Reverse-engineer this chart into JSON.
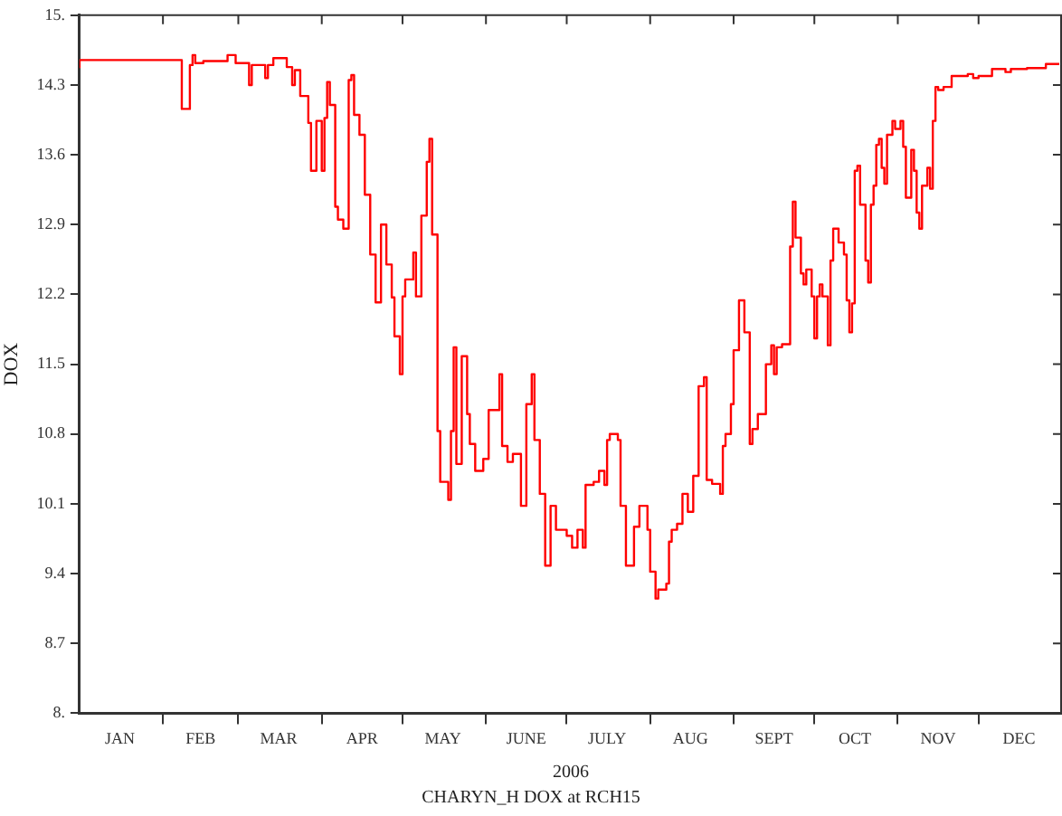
{
  "chart_data": {
    "type": "step",
    "title": "CHARYN_H DOX at RCH15",
    "xlabel": "2006",
    "ylabel": "DOX",
    "x": [
      "2006-01-01",
      "2006-01-31",
      "2006-02-08",
      "2006-02-09",
      "2006-02-11",
      "2006-02-12",
      "2006-02-13",
      "2006-02-16",
      "2006-02-25",
      "2006-02-28",
      "2006-03-05",
      "2006-03-06",
      "2006-03-07",
      "2006-03-11",
      "2006-03-12",
      "2006-03-14",
      "2006-03-19",
      "2006-03-21",
      "2006-03-22",
      "2006-03-24",
      "2006-03-27",
      "2006-03-28",
      "2006-03-30",
      "2006-04-01",
      "2006-04-02",
      "2006-04-03",
      "2006-04-04",
      "2006-04-06",
      "2006-04-07",
      "2006-04-09",
      "2006-04-11",
      "2006-04-12",
      "2006-04-13",
      "2006-04-15",
      "2006-04-17",
      "2006-04-19",
      "2006-04-21",
      "2006-04-23",
      "2006-04-25",
      "2006-04-27",
      "2006-04-28",
      "2006-04-30",
      "2006-05-01",
      "2006-05-02",
      "2006-05-05",
      "2006-05-06",
      "2006-05-08",
      "2006-05-10",
      "2006-05-11",
      "2006-05-12",
      "2006-05-14",
      "2006-05-15",
      "2006-05-18",
      "2006-05-19",
      "2006-05-20",
      "2006-05-21",
      "2006-05-23",
      "2006-05-25",
      "2006-05-26",
      "2006-05-28",
      "2006-05-31",
      "2006-06-02",
      "2006-06-06",
      "2006-06-07",
      "2006-06-09",
      "2006-06-11",
      "2006-06-14",
      "2006-06-16",
      "2006-06-18",
      "2006-06-19",
      "2006-06-21",
      "2006-06-23",
      "2006-06-25",
      "2006-06-27",
      "2006-07-01",
      "2006-07-03",
      "2006-07-05",
      "2006-07-07",
      "2006-07-08",
      "2006-07-11",
      "2006-07-13",
      "2006-07-15",
      "2006-07-16",
      "2006-07-17",
      "2006-07-20",
      "2006-07-21",
      "2006-07-23",
      "2006-07-26",
      "2006-07-28",
      "2006-07-31",
      "2006-08-01",
      "2006-08-03",
      "2006-08-04",
      "2006-08-07",
      "2006-08-08",
      "2006-08-09",
      "2006-08-11",
      "2006-08-13",
      "2006-08-15",
      "2006-08-17",
      "2006-08-19",
      "2006-08-21",
      "2006-08-22",
      "2006-08-24",
      "2006-08-27",
      "2006-08-28",
      "2006-08-29",
      "2006-08-31",
      "2006-09-01",
      "2006-09-03",
      "2006-09-05",
      "2006-09-07",
      "2006-09-08",
      "2006-09-10",
      "2006-09-13",
      "2006-09-15",
      "2006-09-16",
      "2006-09-17",
      "2006-09-19",
      "2006-09-22",
      "2006-09-23",
      "2006-09-24",
      "2006-09-26",
      "2006-09-27",
      "2006-09-28",
      "2006-09-30",
      "2006-10-01",
      "2006-10-02",
      "2006-10-03",
      "2006-10-04",
      "2006-10-06",
      "2006-10-07",
      "2006-10-08",
      "2006-10-10",
      "2006-10-12",
      "2006-10-13",
      "2006-10-14",
      "2006-10-15",
      "2006-10-16",
      "2006-10-17",
      "2006-10-18",
      "2006-10-20",
      "2006-10-21",
      "2006-10-22",
      "2006-10-23",
      "2006-10-24",
      "2006-10-25",
      "2006-10-26",
      "2006-10-27",
      "2006-10-28",
      "2006-10-30",
      "2006-10-31",
      "2006-11-02",
      "2006-11-03",
      "2006-11-04",
      "2006-11-06",
      "2006-11-07",
      "2006-11-08",
      "2006-11-09",
      "2006-11-10",
      "2006-11-12",
      "2006-11-13",
      "2006-11-14",
      "2006-11-15",
      "2006-11-16",
      "2006-11-18",
      "2006-11-21",
      "2006-11-27",
      "2006-11-29",
      "2006-12-01",
      "2006-12-06",
      "2006-12-11",
      "2006-12-13",
      "2006-12-19",
      "2006-12-26",
      "2006-12-31"
    ],
    "series": [
      {
        "color": "#ff0000",
        "values": [
          14.47,
          14.55,
          14.55,
          14.06,
          14.06,
          14.5,
          14.6,
          14.52,
          14.54,
          14.6,
          14.52,
          14.3,
          14.5,
          14.5,
          14.37,
          14.5,
          14.57,
          14.48,
          14.3,
          14.45,
          14.19,
          13.92,
          13.44,
          13.94,
          13.44,
          13.97,
          14.33,
          14.1,
          13.08,
          12.95,
          12.86,
          14.35,
          14.4,
          14.0,
          13.8,
          13.2,
          12.6,
          12.12,
          12.9,
          12.5,
          12.17,
          11.78,
          11.4,
          12.18,
          12.35,
          12.62,
          12.18,
          12.99,
          13.53,
          13.76,
          12.8,
          10.83,
          10.32,
          10.14,
          10.83,
          11.67,
          10.5,
          11.58,
          11.0,
          10.7,
          10.43,
          10.55,
          11.04,
          11.4,
          10.68,
          10.52,
          10.6,
          10.08,
          11.1,
          11.4,
          10.74,
          10.2,
          9.48,
          10.08,
          9.84,
          9.78,
          9.66,
          9.84,
          9.66,
          10.29,
          10.32,
          10.43,
          10.29,
          10.74,
          10.8,
          10.74,
          10.08,
          9.48,
          9.87,
          10.08,
          9.84,
          9.42,
          9.15,
          9.24,
          9.3,
          9.72,
          9.84,
          9.9,
          10.2,
          10.02,
          10.38,
          11.28,
          11.37,
          10.34,
          10.3,
          10.2,
          10.68,
          10.8,
          11.1,
          11.64,
          12.14,
          11.82,
          10.7,
          10.85,
          11.0,
          11.5,
          11.69,
          11.4,
          11.67,
          11.7,
          12.68,
          13.13,
          12.77,
          12.41,
          12.3,
          12.45,
          12.18,
          11.76,
          12.18,
          12.3,
          12.18,
          11.69,
          12.54,
          12.86,
          12.72,
          12.6,
          12.14,
          11.82,
          12.11,
          13.44,
          13.49,
          13.1,
          12.54,
          12.32,
          13.1,
          13.29,
          13.7,
          13.76,
          13.47,
          13.31,
          13.8,
          13.94,
          13.86,
          13.94,
          13.68,
          13.17,
          13.65,
          13.44,
          13.02,
          12.86,
          13.29,
          13.47,
          13.26,
          13.94,
          14.28,
          14.25,
          14.28,
          14.39,
          14.41,
          14.37,
          14.39,
          14.46,
          14.43,
          14.46,
          14.47,
          14.51
        ]
      }
    ],
    "xlim": [
      "2006-01-01",
      "2007-01-01"
    ],
    "xticks": [
      {
        "value": "2006-01-16",
        "label": "JAN"
      },
      {
        "value": "2006-02-01",
        "label": null
      },
      {
        "value": "2006-02-15",
        "label": "FEB"
      },
      {
        "value": "2006-03-01",
        "label": null
      },
      {
        "value": "2006-03-16",
        "label": "MAR"
      },
      {
        "value": "2006-04-01",
        "label": null
      },
      {
        "value": "2006-04-16",
        "label": "APR"
      },
      {
        "value": "2006-05-01",
        "label": null
      },
      {
        "value": "2006-05-16",
        "label": "MAY"
      },
      {
        "value": "2006-06-01",
        "label": null
      },
      {
        "value": "2006-06-16",
        "label": "JUNE"
      },
      {
        "value": "2006-07-01",
        "label": null
      },
      {
        "value": "2006-07-16",
        "label": "JULY"
      },
      {
        "value": "2006-08-01",
        "label": null
      },
      {
        "value": "2006-08-16",
        "label": "AUG"
      },
      {
        "value": "2006-09-01",
        "label": null
      },
      {
        "value": "2006-09-16",
        "label": "SEPT"
      },
      {
        "value": "2006-10-01",
        "label": null
      },
      {
        "value": "2006-10-16",
        "label": "OCT"
      },
      {
        "value": "2006-11-01",
        "label": null
      },
      {
        "value": "2006-11-16",
        "label": "NOV"
      },
      {
        "value": "2006-12-01",
        "label": null
      },
      {
        "value": "2006-12-16",
        "label": "DEC"
      }
    ],
    "ylim": [
      8,
      15
    ],
    "yticks": [
      {
        "value": 8,
        "label": "8."
      },
      8.7,
      9.4,
      10.1,
      10.8,
      11.5,
      12.2,
      12.9,
      13.6,
      14.3,
      {
        "value": 15,
        "label": "15."
      }
    ],
    "grid": false,
    "legend": false,
    "line_style": "solid",
    "marker": "none"
  }
}
